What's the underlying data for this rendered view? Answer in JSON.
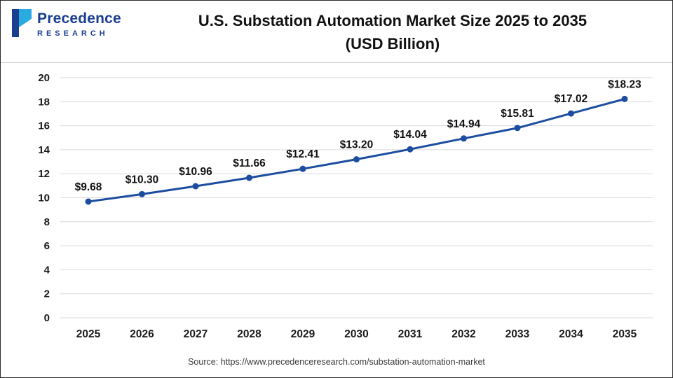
{
  "logo": {
    "name": "Precedence",
    "subname": "RESEARCH"
  },
  "header": {
    "title_line1": "U.S. Substation Automation Market Size 2025 to 2035",
    "title_line2": "(USD Billion)"
  },
  "source": "Source: https://www.precedenceresearch.com/substation-automation-market",
  "chart_data": {
    "type": "line",
    "title": "U.S. Substation Automation Market Size 2025 to 2035 (USD Billion)",
    "categories": [
      "2025",
      "2026",
      "2027",
      "2028",
      "2029",
      "2030",
      "2031",
      "2032",
      "2033",
      "2034",
      "2035"
    ],
    "values": [
      9.68,
      10.3,
      10.96,
      11.66,
      12.41,
      13.2,
      14.04,
      14.94,
      15.81,
      17.02,
      18.23
    ],
    "labels": [
      "$9.68",
      "$10.30",
      "$10.96",
      "$11.66",
      "$12.41",
      "$13.20",
      "$14.04",
      "$14.94",
      "$15.81",
      "$17.02",
      "$18.23"
    ],
    "xlabel": "",
    "ylabel": "",
    "ylim": [
      0,
      20
    ],
    "ytick_step": 2,
    "grid": true,
    "legend": "none",
    "line_color": "#1c4da0",
    "marker_color": "#1c4da0",
    "grid_color": "#d9d9d9",
    "axis_text_color": "#1a1a1a",
    "data_label_color": "#111111"
  }
}
